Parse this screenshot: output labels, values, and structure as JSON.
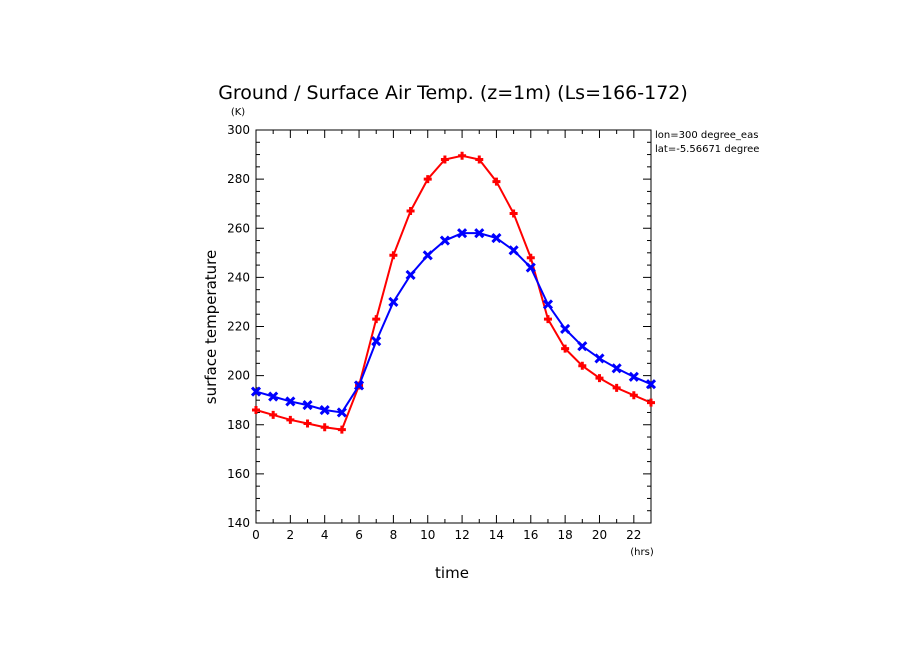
{
  "chart_data": {
    "type": "line",
    "title": "Ground / Surface Air Temp. (z=1m) (Ls=166-172)",
    "xlabel": "time",
    "ylabel": "surface temperature",
    "x_unit": "(hrs)",
    "y_unit": "(K)",
    "xlim": [
      0,
      23
    ],
    "ylim": [
      140,
      300
    ],
    "x_ticks": [
      0,
      2,
      4,
      6,
      8,
      10,
      12,
      14,
      16,
      18,
      20,
      22
    ],
    "y_ticks": [
      140,
      160,
      180,
      200,
      220,
      240,
      260,
      280,
      300
    ],
    "annotations": [
      "lon=300 degree_eas",
      "lat=-5.56671 degree"
    ],
    "x": [
      0,
      1,
      2,
      3,
      4,
      5,
      6,
      7,
      8,
      9,
      10,
      11,
      12,
      13,
      14,
      15,
      16,
      17,
      18,
      19,
      20,
      21,
      22,
      23
    ],
    "series": [
      {
        "color": "#ff0000",
        "marker": "plus",
        "values": [
          186,
          184,
          182,
          180.5,
          179,
          178,
          196,
          223,
          249,
          267,
          280,
          288,
          289.5,
          288,
          279,
          266,
          248,
          223,
          211,
          204,
          199,
          195,
          192,
          189
        ]
      },
      {
        "color": "#0000ff",
        "marker": "x",
        "values": [
          193.5,
          191.5,
          189.5,
          188,
          186,
          185,
          196,
          214,
          230,
          241,
          249,
          255,
          258,
          258,
          256,
          251,
          244,
          229,
          219,
          212,
          207,
          203,
          199.5,
          196.5
        ]
      }
    ]
  }
}
